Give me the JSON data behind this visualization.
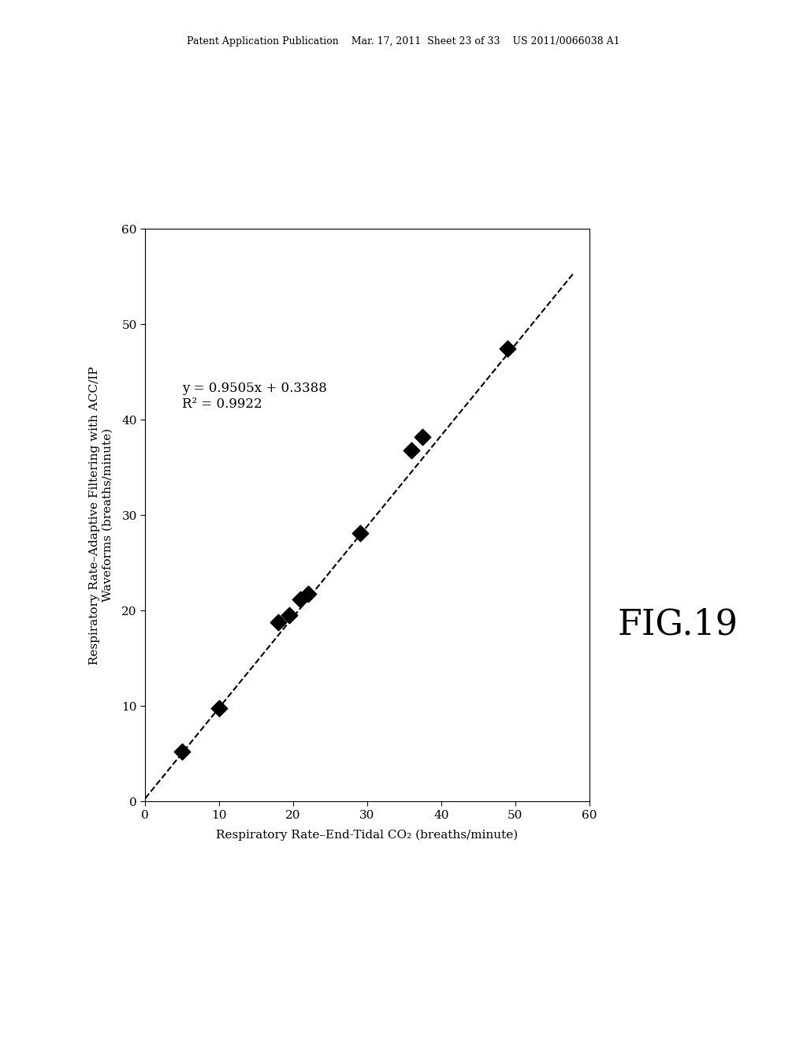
{
  "header": "Patent Application Publication    Mar. 17, 2011  Sheet 23 of 33    US 2011/0066038 A1",
  "fig_label": "FIG.19",
  "x_label": "Respiratory Rate–End-Tidal CO₂ (breaths/minute)",
  "y_label_line1": "Respiratory Rate–Adaptive Filtering with ACC/IP",
  "y_label_line2": "Waveforms (breaths/minute)",
  "equation": "y = 0.9505x + 0.3388",
  "r_squared": "R² = 0.9922",
  "scatter_x": [
    5,
    10,
    18,
    19.5,
    21,
    22,
    29,
    36,
    37.5,
    49
  ],
  "scatter_y": [
    5.2,
    9.8,
    18.8,
    19.5,
    21.2,
    21.8,
    28.1,
    36.8,
    38.2,
    47.5
  ],
  "trend_x": [
    0,
    58
  ],
  "trend_y": [
    0.3388,
    55.468
  ],
  "xlim": [
    0,
    60
  ],
  "ylim": [
    0,
    60
  ],
  "ticks": [
    0,
    10,
    20,
    30,
    40,
    50,
    60
  ],
  "marker_size": 110,
  "fig_width": 10.24,
  "fig_height": 13.2,
  "dpi": 100
}
